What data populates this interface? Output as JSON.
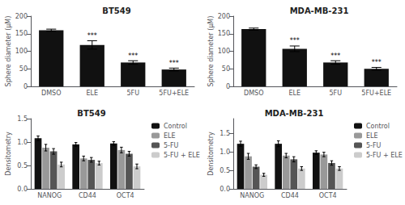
{
  "chart_data": [
    {
      "type": "bar",
      "title": "BT549",
      "ylabel": "Sphere diameter (μM)",
      "categories": [
        "DMSO",
        "ELE",
        "5FU",
        "5FU+ELE"
      ],
      "values": [
        160,
        118,
        68,
        48
      ],
      "errors": [
        3,
        12,
        5,
        4
      ],
      "annotations": [
        null,
        "***",
        "***",
        "***"
      ],
      "color": "#111111",
      "ylim": [
        0,
        200
      ],
      "yticks": [
        0,
        50,
        100,
        150,
        200
      ],
      "grid": false
    },
    {
      "type": "bar",
      "title": "MDA-MB-231",
      "ylabel": "Sphere diameter (μM)",
      "categories": [
        "DMSO",
        "ELE",
        "5FU",
        "5FU+ELE"
      ],
      "values": [
        163,
        107,
        68,
        50
      ],
      "errors": [
        3,
        8,
        5,
        4
      ],
      "annotations": [
        null,
        "***",
        "***",
        "***"
      ],
      "color": "#111111",
      "ylim": [
        0,
        200
      ],
      "yticks": [
        0,
        50,
        100,
        150,
        200
      ],
      "grid": false
    },
    {
      "type": "bar",
      "title": "BT549",
      "ylabel": "Densitometry",
      "categories": [
        "NANOG",
        "CD44",
        "OCT4"
      ],
      "series": [
        {
          "name": "Control",
          "color": "#111111",
          "values": [
            1.08,
            0.95,
            0.97
          ],
          "errors": [
            0.05,
            0.04,
            0.04
          ]
        },
        {
          "name": "ELE",
          "color": "#999999",
          "values": [
            0.88,
            0.65,
            0.83
          ],
          "errors": [
            0.07,
            0.05,
            0.06
          ]
        },
        {
          "name": "5-FU",
          "color": "#555555",
          "values": [
            0.8,
            0.62,
            0.75
          ],
          "errors": [
            0.06,
            0.05,
            0.05
          ]
        },
        {
          "name": "5-FU + ELE",
          "color": "#cccccc",
          "values": [
            0.52,
            0.55,
            0.48
          ],
          "errors": [
            0.05,
            0.04,
            0.05
          ]
        }
      ],
      "ylim": [
        0,
        1.5
      ],
      "yticks": [
        {
          "value": 0,
          "label": "0.0"
        },
        0.5,
        {
          "value": 1,
          "label": "1.0"
        },
        1.5
      ],
      "legend": "upper right",
      "grid": false
    },
    {
      "type": "bar",
      "title": "MDA-MB-231",
      "ylabel": "Densitometry",
      "categories": [
        "NANOG",
        "CD44",
        "OCT4"
      ],
      "series": [
        {
          "name": "Control",
          "color": "#111111",
          "values": [
            1.22,
            1.22,
            0.98
          ],
          "errors": [
            0.07,
            0.08,
            0.05
          ]
        },
        {
          "name": "ELE",
          "color": "#999999",
          "values": [
            0.88,
            0.9,
            0.93
          ],
          "errors": [
            0.08,
            0.06,
            0.06
          ]
        },
        {
          "name": "5-FU",
          "color": "#555555",
          "values": [
            0.6,
            0.8,
            0.7
          ],
          "errors": [
            0.05,
            0.07,
            0.06
          ]
        },
        {
          "name": "5-FU + ELE",
          "color": "#cccccc",
          "values": [
            0.38,
            0.55,
            0.55
          ],
          "errors": [
            0.04,
            0.05,
            0.05
          ]
        }
      ],
      "ylim": [
        0,
        1.9
      ],
      "yticks": [
        {
          "value": 0,
          "label": "0.0"
        },
        0.5,
        {
          "value": 1,
          "label": "1.0"
        },
        1.5
      ],
      "legend": "upper right",
      "grid": false
    }
  ]
}
